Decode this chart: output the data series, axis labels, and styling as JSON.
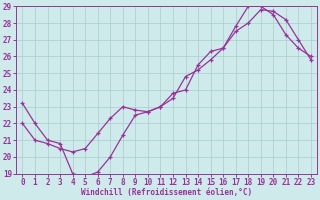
{
  "xlabel": "Windchill (Refroidissement éolien,°C)",
  "bg_color": "#ceeaea",
  "line_color": "#993399",
  "grid_color": "#aacccc",
  "xlim": [
    -0.5,
    23.5
  ],
  "ylim": [
    19,
    29
  ],
  "yticks": [
    19,
    20,
    21,
    22,
    23,
    24,
    25,
    26,
    27,
    28,
    29
  ],
  "xticks": [
    0,
    1,
    2,
    3,
    4,
    5,
    6,
    7,
    8,
    9,
    10,
    11,
    12,
    13,
    14,
    15,
    16,
    17,
    18,
    19,
    20,
    21,
    22,
    23
  ],
  "line1_x": [
    0,
    1,
    2,
    3,
    4,
    5,
    6,
    7,
    8,
    9,
    10,
    11,
    12,
    13,
    14,
    15,
    16,
    17,
    18,
    19,
    20,
    21,
    22,
    23
  ],
  "line1_y": [
    23.2,
    22.0,
    21.0,
    20.8,
    19.0,
    18.8,
    19.1,
    20.0,
    21.3,
    22.5,
    22.7,
    23.0,
    23.8,
    24.0,
    25.5,
    26.3,
    26.5,
    27.8,
    29.0,
    29.0,
    28.5,
    27.3,
    26.5,
    26.0
  ],
  "line2_x": [
    0,
    1,
    2,
    3,
    4,
    5,
    6,
    7,
    8,
    9,
    10,
    11,
    12,
    13,
    14,
    15,
    16,
    17,
    18,
    19,
    20,
    21,
    22,
    23
  ],
  "line2_y": [
    22.0,
    21.0,
    20.8,
    20.5,
    20.3,
    20.5,
    21.4,
    22.3,
    23.0,
    22.8,
    22.7,
    23.0,
    23.5,
    24.8,
    25.2,
    25.8,
    26.5,
    27.5,
    28.0,
    28.8,
    28.7,
    28.2,
    27.0,
    25.8
  ]
}
